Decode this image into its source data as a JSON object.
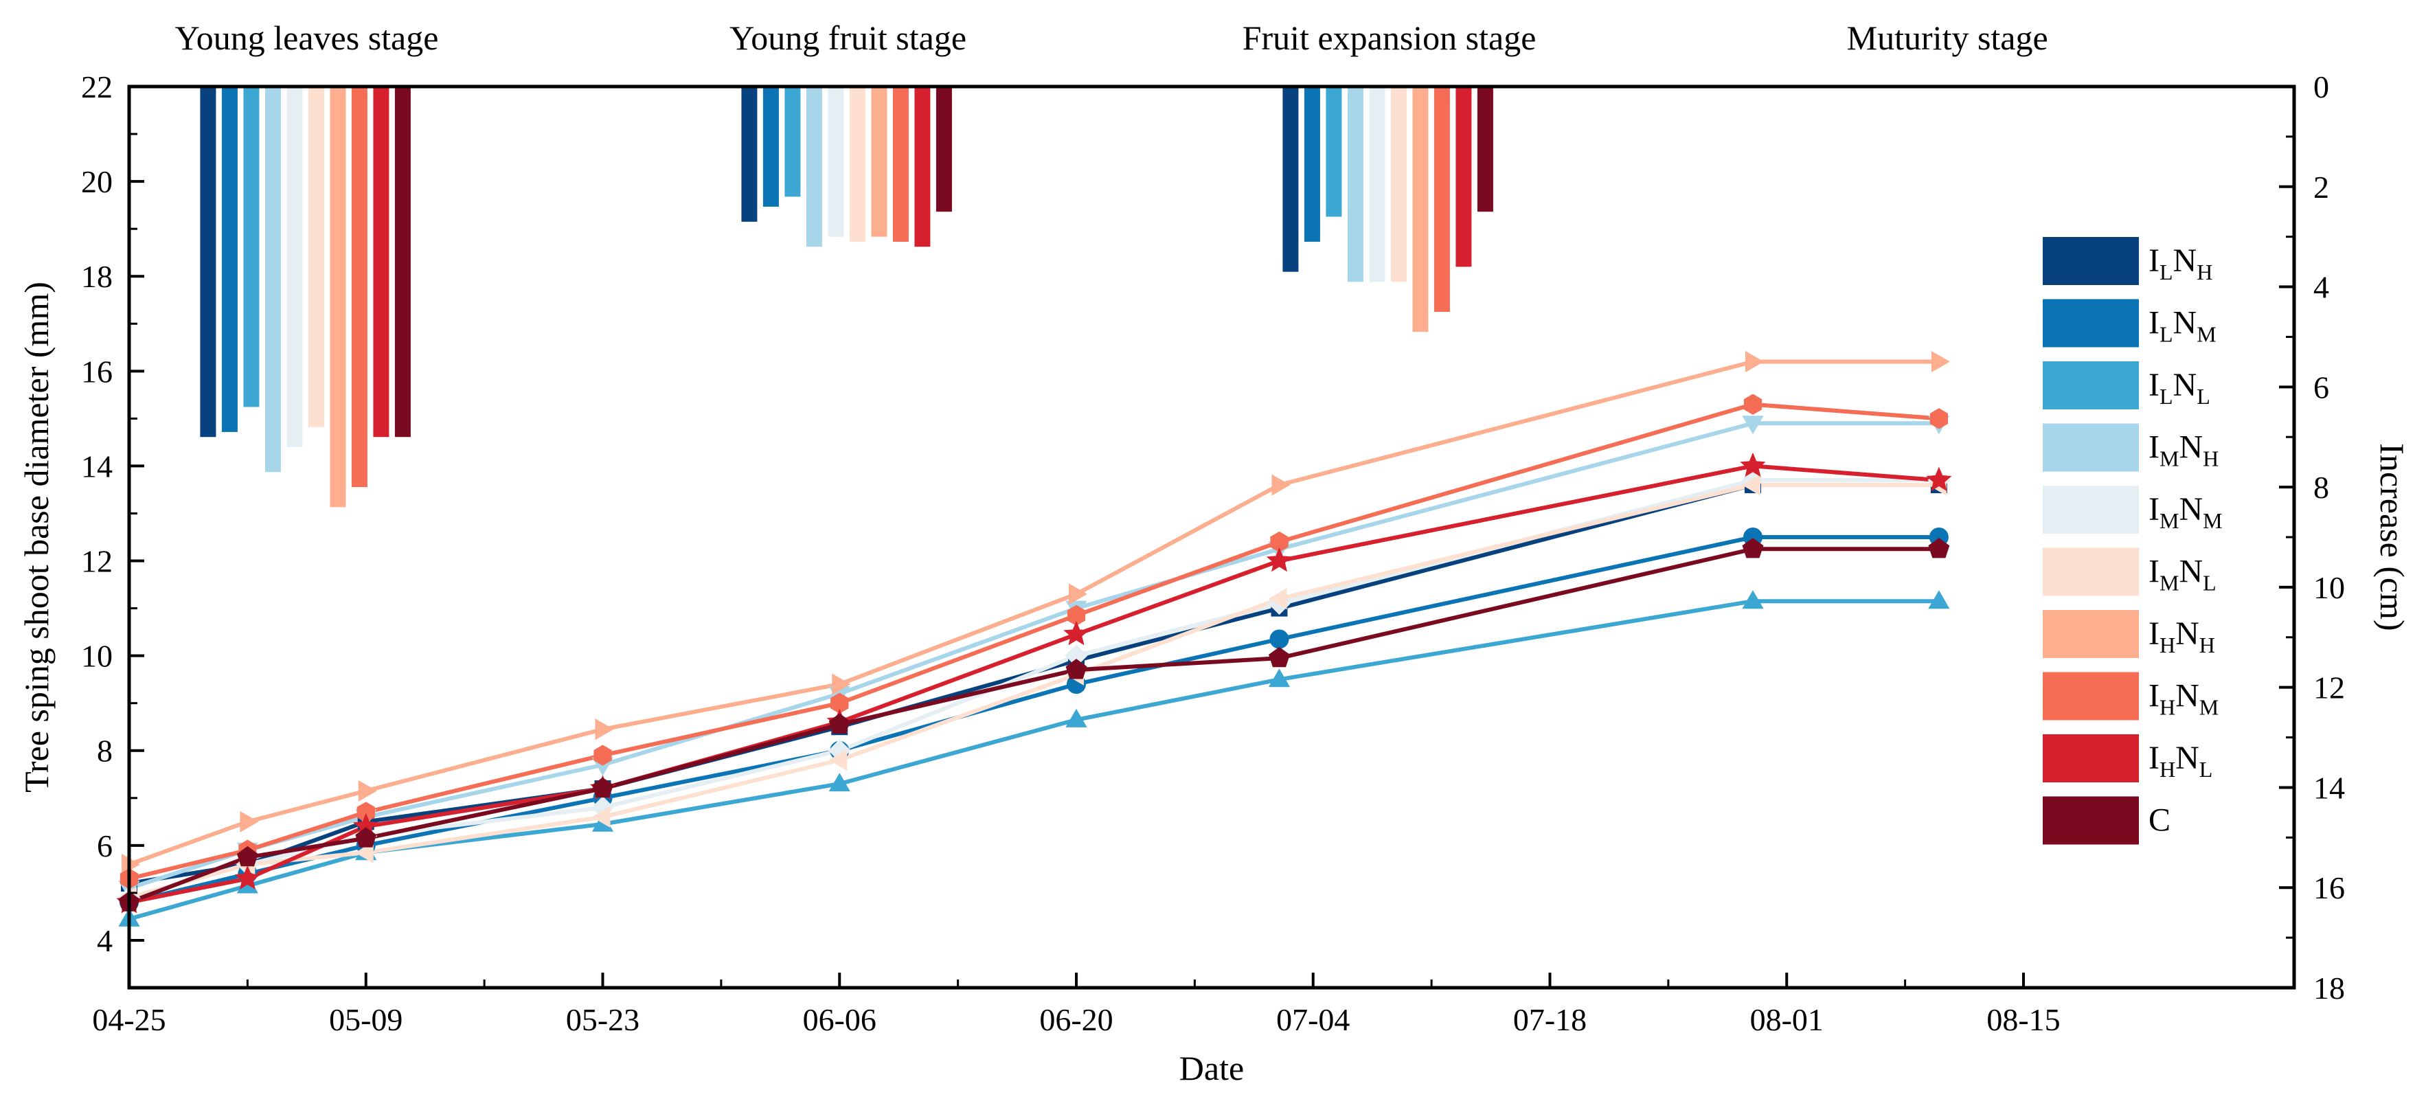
{
  "chart_data": {
    "type": "line+bar (dual axis)",
    "title": "",
    "xlabel": "Date",
    "ylabel": "Tree sping shoot base diameter (mm)",
    "y2label": "Increase (cm)",
    "xlim_days": [
      0,
      128
    ],
    "x_ticks": [
      {
        "day": 0,
        "label": "04-25"
      },
      {
        "day": 14,
        "label": "05-09"
      },
      {
        "day": 28,
        "label": "05-23"
      },
      {
        "day": 42,
        "label": "06-06"
      },
      {
        "day": 56,
        "label": "06-20"
      },
      {
        "day": 70,
        "label": "07-04"
      },
      {
        "day": 84,
        "label": "07-18"
      },
      {
        "day": 98,
        "label": "08-01"
      },
      {
        "day": 112,
        "label": "08-15"
      }
    ],
    "ylim": [
      3,
      22
    ],
    "y_ticks": [
      4,
      6,
      8,
      10,
      12,
      14,
      16,
      18,
      20,
      22
    ],
    "y2lim": [
      0,
      18
    ],
    "y2_ticks": [
      0,
      2,
      4,
      6,
      8,
      10,
      12,
      14,
      16,
      18
    ],
    "stages": [
      {
        "label": "Young leaves stage",
        "center_day": 10.5
      },
      {
        "label": "Young fruit stage",
        "center_day": 42.5
      },
      {
        "label": "Fruit expansion stage",
        "center_day": 74.5
      },
      {
        "label": "Muturity stage",
        "center_day": 107.5
      }
    ],
    "line_x_days": [
      0,
      7,
      14,
      28,
      42,
      56,
      68,
      96,
      107
    ],
    "bar_groups": [
      {
        "stage": "Young leaves stage",
        "start_day": 4.2
      },
      {
        "stage": "Young fruit stage",
        "start_day": 36.2
      },
      {
        "stage": "Fruit expansion stage",
        "start_day": 68.2
      }
    ],
    "series": [
      {
        "name": "I",
        "sub1": "L",
        "n": "N",
        "sub2": "H",
        "color": "#08427e",
        "marker": "square",
        "values": [
          5.2,
          5.6,
          6.5,
          7.2,
          8.5,
          9.9,
          11.0,
          13.6,
          13.6
        ],
        "increase": [
          7.0,
          2.7,
          3.7
        ]
      },
      {
        "name": "I",
        "sub1": "L",
        "n": "N",
        "sub2": "M",
        "color": "#0b74b5",
        "marker": "circle",
        "values": [
          4.8,
          5.4,
          6.0,
          7.0,
          8.0,
          9.4,
          10.35,
          12.5,
          12.5
        ],
        "increase": [
          6.9,
          2.4,
          3.1
        ]
      },
      {
        "name": "I",
        "sub1": "L",
        "n": "N",
        "sub2": "L",
        "color": "#3ca7d3",
        "marker": "triangle-up",
        "values": [
          4.45,
          5.15,
          5.85,
          6.45,
          7.3,
          8.65,
          9.5,
          11.15,
          11.15
        ],
        "increase": [
          6.4,
          2.2,
          2.6
        ]
      },
      {
        "name": "I",
        "sub1": "M",
        "n": "N",
        "sub2": "H",
        "color": "#a7d6ea",
        "marker": "triangle-down",
        "values": [
          5.1,
          5.9,
          6.6,
          7.7,
          9.2,
          11.0,
          12.25,
          14.9,
          14.9
        ],
        "increase": [
          7.7,
          3.2,
          3.9
        ]
      },
      {
        "name": "I",
        "sub1": "M",
        "n": "N",
        "sub2": "M",
        "color": "#e4eef3",
        "marker": "diamond",
        "values": [
          4.9,
          5.6,
          6.2,
          6.8,
          8.0,
          10.0,
          11.1,
          13.7,
          13.7
        ],
        "increase": [
          7.2,
          3.0,
          3.9
        ]
      },
      {
        "name": "I",
        "sub1": "M",
        "n": "N",
        "sub2": "L",
        "color": "#fde0d0",
        "marker": "triangle-left",
        "values": [
          4.9,
          5.6,
          5.85,
          6.6,
          7.8,
          9.6,
          11.2,
          13.6,
          13.6
        ],
        "increase": [
          6.8,
          3.1,
          3.9
        ]
      },
      {
        "name": "I",
        "sub1": "H",
        "n": "N",
        "sub2": "H",
        "color": "#fcae8e",
        "marker": "triangle-right",
        "values": [
          5.6,
          6.5,
          7.15,
          8.45,
          9.4,
          11.3,
          13.6,
          16.2,
          16.2
        ],
        "increase": [
          8.4,
          3.0,
          4.9
        ]
      },
      {
        "name": "I",
        "sub1": "H",
        "n": "N",
        "sub2": "M",
        "color": "#f46d54",
        "marker": "hexagon",
        "values": [
          5.3,
          5.9,
          6.7,
          7.9,
          9.0,
          10.85,
          12.4,
          15.3,
          15.0
        ],
        "increase": [
          8.0,
          3.1,
          4.5
        ]
      },
      {
        "name": "I",
        "sub1": "H",
        "n": "N",
        "sub2": "L",
        "color": "#d7202e",
        "marker": "star",
        "values": [
          4.8,
          5.3,
          6.4,
          7.2,
          8.6,
          10.45,
          12.0,
          14.0,
          13.7
        ],
        "increase": [
          7.0,
          3.2,
          3.6
        ]
      },
      {
        "name": "C",
        "sub1": "",
        "n": "",
        "sub2": "",
        "color": "#7a0a1f",
        "marker": "pentagon",
        "values": [
          4.8,
          5.75,
          6.15,
          7.2,
          8.55,
          9.7,
          9.95,
          12.25,
          12.25
        ],
        "increase": [
          7.0,
          2.5,
          2.5
        ]
      }
    ]
  }
}
